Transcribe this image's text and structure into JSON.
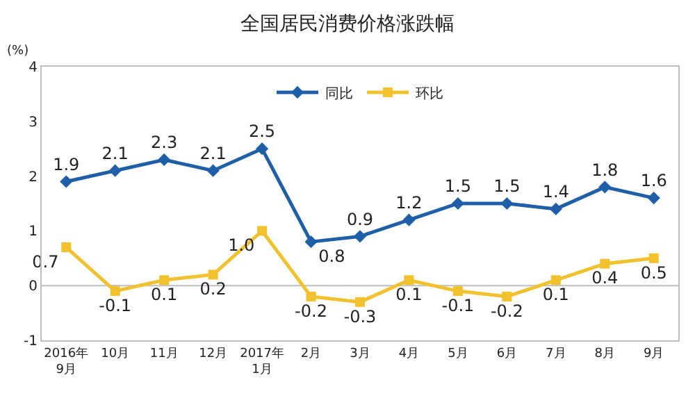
{
  "chart_data": {
    "type": "line",
    "title": "全国居民消费价格涨跌幅",
    "ylabel": "(%)",
    "categories": [
      "2016年\n9月",
      "10月",
      "11月",
      "12月",
      "2017年\n1月",
      "2月",
      "3月",
      "4月",
      "5月",
      "6月",
      "7月",
      "8月",
      "9月"
    ],
    "series": [
      {
        "name": "同比",
        "color": "#1f5fa8",
        "marker": "diamond",
        "values": [
          1.9,
          2.1,
          2.3,
          2.1,
          2.5,
          0.8,
          0.9,
          1.2,
          1.5,
          1.5,
          1.4,
          1.8,
          1.6
        ],
        "value_labels": [
          "1.9",
          "2.1",
          "2.3",
          "2.1",
          "2.5",
          "0.8",
          "0.9",
          "1.2",
          "1.5",
          "1.5",
          "1.4",
          "1.8",
          "1.6"
        ]
      },
      {
        "name": "环比",
        "color": "#f2c12e",
        "marker": "square",
        "values": [
          0.7,
          -0.1,
          0.1,
          0.2,
          1.0,
          -0.2,
          -0.3,
          0.1,
          -0.1,
          -0.2,
          0.1,
          0.4,
          0.5
        ],
        "value_labels": [
          "0.7",
          "-0.1",
          "0.1",
          "0.2",
          "1.0",
          "-0.2",
          "-0.3",
          "0.1",
          "-0.1",
          "-0.2",
          "0.1",
          "0.4",
          "0.5"
        ]
      }
    ],
    "ylim": [
      -1,
      4
    ],
    "yticks": [
      -1,
      0,
      1,
      2,
      3,
      4
    ],
    "grid": false,
    "legend": "top",
    "ref_lines": [
      {
        "axis": "y",
        "value": 0,
        "color": "#bfbfbf"
      }
    ]
  }
}
